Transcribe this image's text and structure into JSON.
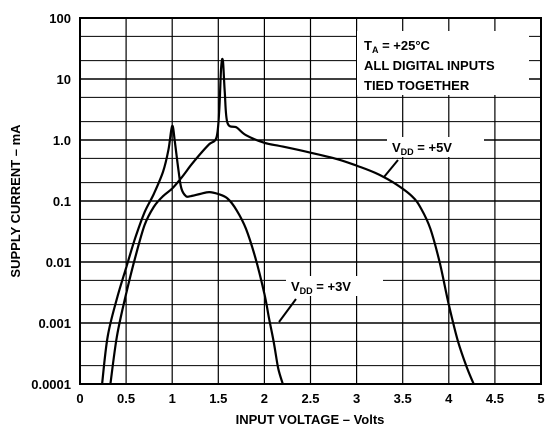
{
  "chart_data": {
    "type": "line",
    "title": "",
    "xlabel": "INPUT VOLTAGE – Volts",
    "ylabel": "SUPPLY CURRENT – mA",
    "xlim": [
      0,
      5
    ],
    "ylim": [
      0.0001,
      100
    ],
    "yscale": "log",
    "grid": true,
    "x_ticks": [
      {
        "value": 0,
        "label": "0"
      },
      {
        "value": 0.5,
        "label": "0.5"
      },
      {
        "value": 1,
        "label": "1"
      },
      {
        "value": 1.5,
        "label": "1.5"
      },
      {
        "value": 2,
        "label": "2"
      },
      {
        "value": 2.5,
        "label": "2.5"
      },
      {
        "value": 3,
        "label": "3"
      },
      {
        "value": 3.5,
        "label": "3.5"
      },
      {
        "value": 4,
        "label": "4"
      },
      {
        "value": 4.5,
        "label": "4.5"
      },
      {
        "value": 5,
        "label": "5"
      }
    ],
    "y_ticks": [
      {
        "value": 100,
        "label": "100"
      },
      {
        "value": 10,
        "label": "10"
      },
      {
        "value": 1,
        "label": "1.0"
      },
      {
        "value": 0.1,
        "label": "0.1"
      },
      {
        "value": 0.01,
        "label": "0.01"
      },
      {
        "value": 0.001,
        "label": "0.001"
      },
      {
        "value": 0.0001,
        "label": "0.0001"
      }
    ],
    "conditions": {
      "ta_prefix": "T",
      "ta_sub": "A",
      "ta_value": " = +25°C",
      "line2": "ALL DIGITAL INPUTS",
      "line3": "TIED TOGETHER"
    },
    "series": [
      {
        "label_prefix": "V",
        "label_sub": "DD",
        "label_value": " = +5V",
        "x": [
          0.33,
          0.4,
          0.5,
          0.6,
          0.7,
          0.8,
          0.9,
          1.0,
          1.1,
          1.2,
          1.3,
          1.4,
          1.48,
          1.51,
          1.53,
          1.55,
          1.57,
          1.6,
          1.7,
          1.8,
          2.0,
          2.2,
          2.5,
          2.8,
          3.0,
          3.2,
          3.4,
          3.6,
          3.7,
          3.8,
          3.9,
          4.0,
          4.1,
          4.2,
          4.27
        ],
        "y": [
          0.0001,
          0.0006,
          0.003,
          0.012,
          0.04,
          0.08,
          0.12,
          0.16,
          0.24,
          0.38,
          0.58,
          0.85,
          1.1,
          3.0,
          15,
          20,
          6,
          1.9,
          1.6,
          1.2,
          0.9,
          0.78,
          0.62,
          0.48,
          0.38,
          0.29,
          0.2,
          0.12,
          0.075,
          0.035,
          0.01,
          0.002,
          0.0005,
          0.00018,
          0.0001
        ]
      },
      {
        "label_prefix": "V",
        "label_sub": "DD",
        "label_value": " = +3V",
        "x": [
          0.24,
          0.3,
          0.4,
          0.5,
          0.6,
          0.7,
          0.8,
          0.9,
          0.96,
          1.0,
          1.03,
          1.07,
          1.1,
          1.15,
          1.2,
          1.3,
          1.4,
          1.5,
          1.6,
          1.7,
          1.8,
          1.9,
          2.0,
          2.05,
          2.1,
          2.15,
          2.2
        ],
        "y": [
          0.0001,
          0.0006,
          0.0025,
          0.008,
          0.025,
          0.065,
          0.13,
          0.3,
          0.7,
          1.7,
          0.9,
          0.3,
          0.16,
          0.12,
          0.12,
          0.13,
          0.14,
          0.13,
          0.11,
          0.07,
          0.035,
          0.012,
          0.003,
          0.0012,
          0.0005,
          0.00018,
          0.0001
        ]
      }
    ]
  }
}
